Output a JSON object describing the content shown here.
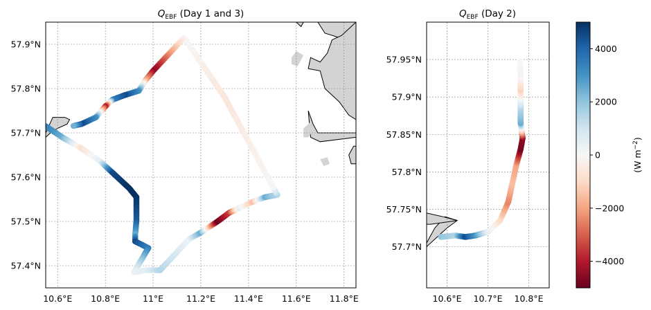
{
  "colors": {
    "land": "#d3d3d3",
    "grid": "#808080",
    "positive": "#053061",
    "neutral": "#f7f7f7",
    "negative": "#67001f"
  },
  "chart_data": [
    {
      "type": "map-track-scatter",
      "title": "Day 1 and 3",
      "title_symbol": "Q",
      "title_subscript": "EBF",
      "title_rest": " (Day 1 and 3)",
      "xlim": [
        10.55,
        11.85
      ],
      "ylim": [
        57.35,
        57.95
      ],
      "xticks": [
        {
          "v": 10.6,
          "label": "10.6°E"
        },
        {
          "v": 10.8,
          "label": "10.8°E"
        },
        {
          "v": 11.0,
          "label": "11°E"
        },
        {
          "v": 11.2,
          "label": "11.2°E"
        },
        {
          "v": 11.4,
          "label": "11.4°E"
        },
        {
          "v": 11.6,
          "label": "11.6°E"
        },
        {
          "v": 11.8,
          "label": "11.8°E"
        }
      ],
      "yticks": [
        {
          "v": 57.4,
          "label": "57.4°N"
        },
        {
          "v": 57.5,
          "label": "57.5°N"
        },
        {
          "v": 57.6,
          "label": "57.6°N"
        },
        {
          "v": 57.7,
          "label": "57.7°N"
        },
        {
          "v": 57.8,
          "label": "57.8°N"
        },
        {
          "v": 57.9,
          "label": "57.9°N"
        }
      ],
      "grid": true,
      "track": [
        {
          "lon": 10.55,
          "lat": 57.715,
          "q": 3500
        },
        {
          "lon": 10.62,
          "lat": 57.69,
          "q": 2500
        },
        {
          "lon": 10.7,
          "lat": 57.665,
          "q": -800
        },
        {
          "lon": 10.78,
          "lat": 57.635,
          "q": 500
        },
        {
          "lon": 10.83,
          "lat": 57.61,
          "q": 4500
        },
        {
          "lon": 10.9,
          "lat": 57.575,
          "q": 5000
        },
        {
          "lon": 10.93,
          "lat": 57.555,
          "q": 5000
        },
        {
          "lon": 10.93,
          "lat": 57.5,
          "q": 4200
        },
        {
          "lon": 10.925,
          "lat": 57.47,
          "q": 2500
        },
        {
          "lon": 10.925,
          "lat": 57.455,
          "q": 4500
        },
        {
          "lon": 10.98,
          "lat": 57.44,
          "q": 3500
        },
        {
          "lon": 10.92,
          "lat": 57.385,
          "q": 300
        },
        {
          "lon": 10.97,
          "lat": 57.39,
          "q": 500
        },
        {
          "lon": 11.03,
          "lat": 57.39,
          "q": 1500
        },
        {
          "lon": 11.15,
          "lat": 57.46,
          "q": 300
        },
        {
          "lon": 11.2,
          "lat": 57.475,
          "q": 2500
        },
        {
          "lon": 11.27,
          "lat": 57.5,
          "q": -5000
        },
        {
          "lon": 11.32,
          "lat": 57.52,
          "q": -3500
        },
        {
          "lon": 11.36,
          "lat": 57.53,
          "q": 500
        },
        {
          "lon": 11.42,
          "lat": 57.545,
          "q": -1500
        },
        {
          "lon": 11.47,
          "lat": 57.555,
          "q": 2500
        },
        {
          "lon": 11.52,
          "lat": 57.56,
          "q": 1500
        },
        {
          "lon": 11.5,
          "lat": 57.58,
          "q": 0
        },
        {
          "lon": 11.3,
          "lat": 57.78,
          "q": -600
        },
        {
          "lon": 11.13,
          "lat": 57.915,
          "q": 0
        },
        {
          "lon": 11.0,
          "lat": 57.84,
          "q": -4500
        },
        {
          "lon": 10.97,
          "lat": 57.82,
          "q": -2000
        },
        {
          "lon": 10.94,
          "lat": 57.795,
          "q": 3000
        },
        {
          "lon": 10.88,
          "lat": 57.785,
          "q": 4500
        },
        {
          "lon": 10.83,
          "lat": 57.775,
          "q": 3500
        },
        {
          "lon": 10.8,
          "lat": 57.76,
          "q": -4000
        },
        {
          "lon": 10.76,
          "lat": 57.735,
          "q": 3000
        },
        {
          "lon": 10.7,
          "lat": 57.72,
          "q": 4500
        },
        {
          "lon": 10.66,
          "lat": 57.715,
          "q": 2000
        }
      ],
      "land": [
        [
          [
            10.55,
            57.7
          ],
          [
            10.58,
            57.735
          ],
          [
            10.63,
            57.735
          ],
          [
            10.63,
            57.735
          ],
          [
            10.65,
            57.73
          ],
          [
            10.64,
            57.72
          ],
          [
            10.6,
            57.71
          ],
          [
            10.57,
            57.7
          ],
          [
            10.55,
            57.69
          ]
        ],
        [
          [
            11.69,
            57.95
          ],
          [
            11.72,
            57.925
          ],
          [
            11.78,
            57.915
          ],
          [
            11.82,
            57.92
          ],
          [
            11.85,
            57.915
          ],
          [
            11.85,
            57.95
          ]
        ],
        [
          [
            11.6,
            57.95
          ],
          [
            11.62,
            57.94
          ],
          [
            11.63,
            57.95
          ]
        ],
        [
          [
            11.66,
            57.87
          ],
          [
            11.65,
            57.845
          ],
          [
            11.7,
            57.84
          ],
          [
            11.72,
            57.8
          ],
          [
            11.78,
            57.77
          ],
          [
            11.82,
            57.74
          ],
          [
            11.85,
            57.73
          ],
          [
            11.85,
            57.95
          ],
          [
            11.79,
            57.92
          ],
          [
            11.75,
            57.91
          ],
          [
            11.73,
            57.88
          ],
          [
            11.7,
            57.86
          ]
        ],
        [
          [
            11.65,
            57.75
          ],
          [
            11.67,
            57.72
          ],
          [
            11.69,
            57.7
          ],
          [
            11.72,
            57.7
          ],
          [
            11.85,
            57.7
          ],
          [
            11.85,
            57.69
          ],
          [
            11.7,
            57.68
          ],
          [
            11.66,
            57.69
          ]
        ],
        [
          [
            11.82,
            57.65
          ],
          [
            11.84,
            57.67
          ],
          [
            11.85,
            57.67
          ],
          [
            11.85,
            57.63
          ],
          [
            11.83,
            57.63
          ]
        ]
      ],
      "islands": [
        [
          [
            11.58,
            57.87
          ],
          [
            11.6,
            57.885
          ],
          [
            11.63,
            57.875
          ],
          [
            11.615,
            57.86
          ],
          [
            11.605,
            57.85
          ],
          [
            11.58,
            57.855
          ]
        ],
        [
          [
            11.63,
            57.71
          ],
          [
            11.66,
            57.725
          ],
          [
            11.67,
            57.705
          ],
          [
            11.65,
            57.69
          ],
          [
            11.63,
            57.69
          ]
        ],
        [
          [
            11.7,
            57.64
          ],
          [
            11.73,
            57.645
          ],
          [
            11.74,
            57.63
          ],
          [
            11.715,
            57.625
          ]
        ]
      ]
    },
    {
      "type": "map-track-scatter",
      "title": "Day 2",
      "title_symbol": "Q",
      "title_subscript": "EBF",
      "title_rest": " (Day 2)",
      "xlim": [
        10.55,
        10.85
      ],
      "ylim": [
        57.645,
        58.0
      ],
      "xticks": [
        {
          "v": 10.6,
          "label": "10.6°E"
        },
        {
          "v": 10.7,
          "label": "10.7°E"
        },
        {
          "v": 10.8,
          "label": "10.8°E"
        }
      ],
      "yticks": [
        {
          "v": 57.7,
          "label": "57.7°N"
        },
        {
          "v": 57.75,
          "label": "57.75°N"
        },
        {
          "v": 57.8,
          "label": "57.8°N"
        },
        {
          "v": 57.85,
          "label": "57.85°N"
        },
        {
          "v": 57.9,
          "label": "57.9°N"
        },
        {
          "v": 57.95,
          "label": "57.95°N"
        }
      ],
      "grid": true,
      "track": [
        {
          "lon": 10.585,
          "lat": 57.713,
          "q": 2000
        },
        {
          "lon": 10.62,
          "lat": 57.715,
          "q": 1500
        },
        {
          "lon": 10.645,
          "lat": 57.713,
          "q": 4500
        },
        {
          "lon": 10.67,
          "lat": 57.715,
          "q": 3000
        },
        {
          "lon": 10.7,
          "lat": 57.72,
          "q": 500
        },
        {
          "lon": 10.73,
          "lat": 57.735,
          "q": -800
        },
        {
          "lon": 10.75,
          "lat": 57.76,
          "q": -2500
        },
        {
          "lon": 10.76,
          "lat": 57.785,
          "q": -1500
        },
        {
          "lon": 10.77,
          "lat": 57.81,
          "q": -2000
        },
        {
          "lon": 10.78,
          "lat": 57.83,
          "q": -4800
        },
        {
          "lon": 10.785,
          "lat": 57.845,
          "q": -4500
        },
        {
          "lon": 10.78,
          "lat": 57.865,
          "q": 2500
        },
        {
          "lon": 10.78,
          "lat": 57.885,
          "q": 1500
        },
        {
          "lon": 10.78,
          "lat": 57.91,
          "q": -1200
        },
        {
          "lon": 10.78,
          "lat": 57.93,
          "q": 200
        },
        {
          "lon": 10.778,
          "lat": 57.95,
          "q": 0
        }
      ],
      "land": [
        [
          [
            10.55,
            57.705
          ],
          [
            10.57,
            57.725
          ],
          [
            10.595,
            57.74
          ],
          [
            10.625,
            57.735
          ],
          [
            10.6,
            57.725
          ],
          [
            10.55,
            57.7
          ]
        ],
        [
          [
            10.55,
            57.745
          ],
          [
            10.59,
            57.74
          ],
          [
            10.625,
            57.735
          ],
          [
            10.56,
            57.73
          ],
          [
            10.55,
            57.73
          ]
        ]
      ]
    },
    {
      "type": "colorbar",
      "label": "(W m",
      "label_exp": "−2",
      "label_end": ")",
      "min": -5000,
      "max": 5000,
      "ticks": [
        {
          "v": 4000,
          "label": "4000"
        },
        {
          "v": 2000,
          "label": "2000"
        },
        {
          "v": 0,
          "label": "0"
        },
        {
          "v": -2000,
          "label": "−2000"
        },
        {
          "v": -4000,
          "label": "−4000"
        }
      ],
      "colormap": "RdBu"
    }
  ]
}
